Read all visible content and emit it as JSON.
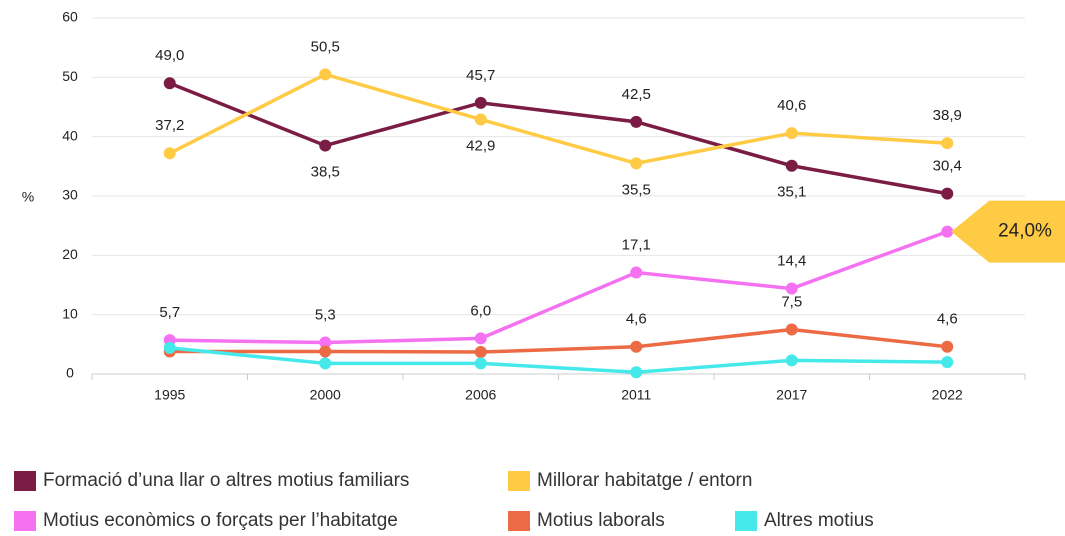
{
  "chart_data": {
    "type": "line",
    "y_label": "%",
    "categories": [
      "1995",
      "2000",
      "2006",
      "2011",
      "2017",
      "2022"
    ],
    "ylim": [
      0,
      60
    ],
    "yticks": [
      0,
      10,
      20,
      30,
      40,
      50,
      60
    ],
    "grid": true,
    "series": [
      {
        "name": "Formació d’una llar o altres motius familiars",
        "color": "#7b1c45",
        "values": [
          49.0,
          38.5,
          45.7,
          42.5,
          35.1,
          30.4
        ],
        "value_labels": [
          "49,0",
          "38,5",
          "45,7",
          "42,5",
          "35,1",
          "30,4"
        ]
      },
      {
        "name": "Millorar habitatge / entorn",
        "color": "#ffcb45",
        "values": [
          37.2,
          50.5,
          42.9,
          35.5,
          40.6,
          38.9
        ],
        "value_labels": [
          "37,2",
          "50,5",
          "42,9",
          "35,5",
          "40,6",
          "38,9"
        ]
      },
      {
        "name": "Motius econòmics o forçats per l’habitatge",
        "color": "#f472f2",
        "values": [
          5.7,
          5.3,
          6.0,
          17.1,
          14.4,
          24.0
        ],
        "value_labels": [
          "5,7",
          "5,3",
          "6,0",
          "17,1",
          "14,4",
          "24,0%"
        ]
      },
      {
        "name": "Motius laborals",
        "color": "#ec6b45",
        "values": [
          3.8,
          3.8,
          3.7,
          4.6,
          7.5,
          4.6
        ],
        "value_labels": [
          null,
          null,
          null,
          "4,6",
          "7,5",
          "4,6"
        ]
      },
      {
        "name": "Altres motius",
        "color": "#45e9ea",
        "values": [
          4.4,
          1.8,
          1.8,
          0.3,
          2.3,
          2.0
        ],
        "value_labels": [
          null,
          null,
          null,
          null,
          null,
          null
        ]
      }
    ]
  }
}
